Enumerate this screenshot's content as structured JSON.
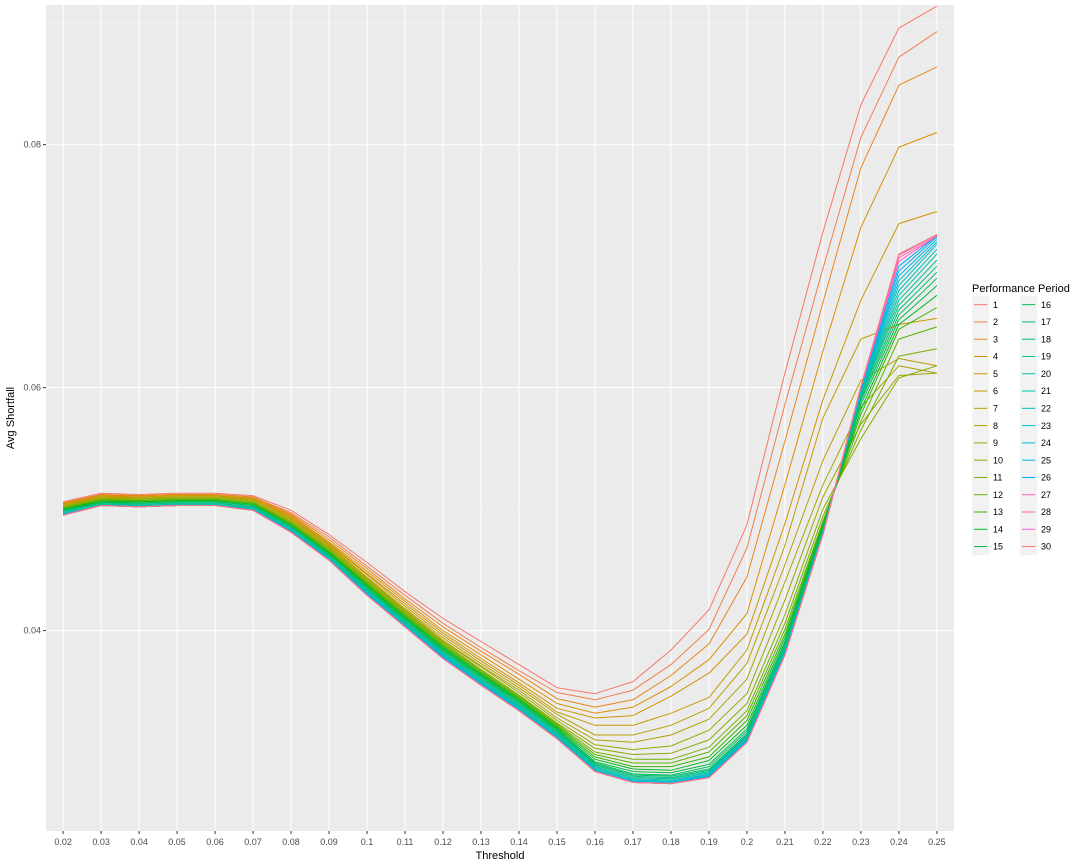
{
  "chart_data": {
    "type": "line",
    "title": "",
    "xlabel": "Threshold",
    "ylabel": "Avg Shortfall",
    "x_ticks": [
      "0.02",
      "0.03",
      "0.04",
      "0.05",
      "0.06",
      "0.07",
      "0.08",
      "0.09",
      "0.1",
      "0.11",
      "0.12",
      "0.13",
      "0.14",
      "0.15",
      "0.16",
      "0.17",
      "0.18",
      "0.19",
      "0.2",
      "0.21",
      "0.22",
      "0.23",
      "0.24",
      "0.25"
    ],
    "y_ticks": [
      "0.04",
      "0.06",
      "0.08"
    ],
    "x": [
      0.02,
      0.03,
      0.04,
      0.05,
      0.06,
      0.07,
      0.08,
      0.09,
      0.1,
      0.11,
      0.12,
      0.13,
      0.14,
      0.15,
      0.16,
      0.17,
      0.18,
      0.19,
      0.2,
      0.21,
      0.22,
      0.23,
      0.24,
      0.25
    ],
    "xlim": [
      0.0155,
      0.2545
    ],
    "ylim": [
      0.0235,
      0.0915
    ],
    "grid": true,
    "background": "#EBEBEB",
    "legend": {
      "title": "Performance Period",
      "position": "right",
      "columns": 2
    },
    "series": [
      {
        "name": "1",
        "color": "#F8766D",
        "values": [
          0.0506,
          0.0513,
          0.0512,
          0.0513,
          0.0513,
          0.0511,
          0.0499,
          0.0479,
          0.0456,
          0.0432,
          0.041,
          0.0391,
          0.0372,
          0.0353,
          0.0348,
          0.0358,
          0.0384,
          0.0417,
          0.0487,
          0.0612,
          0.0728,
          0.0833,
          0.0896,
          0.0914
        ]
      },
      {
        "name": "2",
        "color": "#F07F4F",
        "values": [
          0.0505,
          0.0512,
          0.0511,
          0.0512,
          0.0512,
          0.051,
          0.0497,
          0.0477,
          0.0453,
          0.0429,
          0.0406,
          0.0386,
          0.0367,
          0.0349,
          0.0343,
          0.0351,
          0.0372,
          0.0401,
          0.0468,
          0.0586,
          0.0698,
          0.0806,
          0.0872,
          0.0893
        ]
      },
      {
        "name": "3",
        "color": "#E7861B",
        "values": [
          0.0505,
          0.0512,
          0.0511,
          0.0512,
          0.0512,
          0.051,
          0.0496,
          0.0475,
          0.0451,
          0.0426,
          0.0403,
          0.0383,
          0.0364,
          0.0344,
          0.0337,
          0.0343,
          0.0363,
          0.0389,
          0.0444,
          0.0556,
          0.067,
          0.0781,
          0.0849,
          0.0864
        ]
      },
      {
        "name": "4",
        "color": "#DC8E00",
        "values": [
          0.0505,
          0.0511,
          0.0511,
          0.0512,
          0.0511,
          0.0509,
          0.0495,
          0.0473,
          0.0449,
          0.0424,
          0.04,
          0.038,
          0.036,
          0.034,
          0.0332,
          0.0337,
          0.0354,
          0.0376,
          0.0414,
          0.052,
          0.063,
          0.0732,
          0.0798,
          0.081
        ]
      },
      {
        "name": "5",
        "color": "#D09400",
        "values": [
          0.0504,
          0.0511,
          0.051,
          0.0511,
          0.0511,
          0.0509,
          0.0494,
          0.0472,
          0.0447,
          0.0422,
          0.0398,
          0.0377,
          0.0357,
          0.0336,
          0.0328,
          0.033,
          0.0346,
          0.0365,
          0.0397,
          0.0488,
          0.059,
          0.0672,
          0.0735,
          0.0745
        ]
      },
      {
        "name": "6",
        "color": "#C49A00",
        "values": [
          0.0504,
          0.051,
          0.051,
          0.0511,
          0.0511,
          0.0508,
          0.0493,
          0.0471,
          0.0446,
          0.042,
          0.0396,
          0.0375,
          0.0355,
          0.0333,
          0.0322,
          0.0322,
          0.0332,
          0.0345,
          0.0384,
          0.047,
          0.0575,
          0.064,
          0.0652,
          0.0657
        ]
      },
      {
        "name": "7",
        "color": "#B79F00",
        "values": [
          0.0503,
          0.051,
          0.0509,
          0.051,
          0.051,
          0.0508,
          0.0492,
          0.047,
          0.0444,
          0.0418,
          0.0394,
          0.0373,
          0.0353,
          0.0331,
          0.0314,
          0.0314,
          0.0322,
          0.0336,
          0.0373,
          0.0454,
          0.054,
          0.0606,
          0.0624,
          0.0618
        ]
      },
      {
        "name": "8",
        "color": "#A9A400",
        "values": [
          0.0503,
          0.0509,
          0.0509,
          0.051,
          0.051,
          0.0507,
          0.0491,
          0.0469,
          0.0443,
          0.0417,
          0.0392,
          0.0371,
          0.0351,
          0.0328,
          0.031,
          0.0308,
          0.0314,
          0.0327,
          0.036,
          0.044,
          0.052,
          0.0584,
          0.0618,
          0.0612
        ]
      },
      {
        "name": "9",
        "color": "#99A800",
        "values": [
          0.0502,
          0.0509,
          0.0508,
          0.0509,
          0.0509,
          0.0506,
          0.049,
          0.0468,
          0.0442,
          0.0416,
          0.0391,
          0.037,
          0.0349,
          0.0326,
          0.0306,
          0.0302,
          0.0305,
          0.0318,
          0.0348,
          0.0425,
          0.051,
          0.057,
          0.061,
          0.0612
        ]
      },
      {
        "name": "10",
        "color": "#88AC00",
        "values": [
          0.0502,
          0.0508,
          0.0508,
          0.0509,
          0.0509,
          0.0506,
          0.0489,
          0.0467,
          0.0441,
          0.0415,
          0.039,
          0.0368,
          0.0347,
          0.0324,
          0.0303,
          0.0298,
          0.0299,
          0.031,
          0.034,
          0.0413,
          0.05,
          0.0558,
          0.0608,
          0.0618
        ]
      },
      {
        "name": "11",
        "color": "#74B000",
        "values": [
          0.0501,
          0.0508,
          0.0507,
          0.0508,
          0.0508,
          0.0505,
          0.0489,
          0.0466,
          0.044,
          0.0414,
          0.0389,
          0.0367,
          0.0346,
          0.0323,
          0.03,
          0.0294,
          0.0294,
          0.0304,
          0.0334,
          0.0406,
          0.0494,
          0.0565,
          0.0626,
          0.0632
        ]
      },
      {
        "name": "12",
        "color": "#5BB300",
        "values": [
          0.0501,
          0.0507,
          0.0507,
          0.0508,
          0.0508,
          0.0505,
          0.0488,
          0.0465,
          0.0439,
          0.0413,
          0.0388,
          0.0366,
          0.0345,
          0.0322,
          0.0298,
          0.0291,
          0.0291,
          0.03,
          0.033,
          0.0401,
          0.049,
          0.0572,
          0.064,
          0.065
        ]
      },
      {
        "name": "13",
        "color": "#30B600",
        "values": [
          0.05,
          0.0507,
          0.0506,
          0.0507,
          0.0507,
          0.0504,
          0.0487,
          0.0465,
          0.0438,
          0.0412,
          0.0387,
          0.0365,
          0.0344,
          0.0321,
          0.0296,
          0.0288,
          0.0288,
          0.0296,
          0.0326,
          0.0397,
          0.0488,
          0.0578,
          0.0648,
          0.0666
        ]
      },
      {
        "name": "14",
        "color": "#00B81F",
        "values": [
          0.05,
          0.0506,
          0.0506,
          0.0507,
          0.0507,
          0.0504,
          0.0487,
          0.0464,
          0.0437,
          0.0411,
          0.0386,
          0.0364,
          0.0343,
          0.032,
          0.0294,
          0.0286,
          0.0285,
          0.0293,
          0.0322,
          0.0394,
          0.0486,
          0.0582,
          0.0652,
          0.0676
        ]
      },
      {
        "name": "15",
        "color": "#00BA42",
        "values": [
          0.0499,
          0.0506,
          0.0505,
          0.0506,
          0.0506,
          0.0503,
          0.0486,
          0.0463,
          0.0436,
          0.041,
          0.0385,
          0.0363,
          0.0342,
          0.0319,
          0.0292,
          0.0284,
          0.0283,
          0.029,
          0.0319,
          0.0391,
          0.0485,
          0.0586,
          0.0656,
          0.0684
        ]
      },
      {
        "name": "16",
        "color": "#00BC5B",
        "values": [
          0.0499,
          0.0505,
          0.0505,
          0.0506,
          0.0506,
          0.0503,
          0.0486,
          0.0462,
          0.0435,
          0.0409,
          0.0384,
          0.0362,
          0.0341,
          0.0318,
          0.0291,
          0.0282,
          0.0281,
          0.0288,
          0.0317,
          0.0389,
          0.0484,
          0.0589,
          0.066,
          0.069
        ]
      },
      {
        "name": "17",
        "color": "#00BE70",
        "values": [
          0.0498,
          0.0505,
          0.0504,
          0.0505,
          0.0505,
          0.0502,
          0.0485,
          0.0462,
          0.0434,
          0.0408,
          0.0383,
          0.0361,
          0.034,
          0.0317,
          0.029,
          0.0281,
          0.028,
          0.0286,
          0.0315,
          0.0387,
          0.0483,
          0.0591,
          0.0664,
          0.0695
        ]
      },
      {
        "name": "18",
        "color": "#00BF83",
        "values": [
          0.0498,
          0.0504,
          0.0504,
          0.0505,
          0.0505,
          0.0502,
          0.0484,
          0.0461,
          0.0434,
          0.0407,
          0.0382,
          0.036,
          0.0339,
          0.0316,
          0.0289,
          0.028,
          0.0279,
          0.0285,
          0.0314,
          0.0386,
          0.0482,
          0.0593,
          0.0668,
          0.07
        ]
      },
      {
        "name": "19",
        "color": "#00C094",
        "values": [
          0.0497,
          0.0504,
          0.0503,
          0.0504,
          0.0504,
          0.0501,
          0.0484,
          0.0461,
          0.0433,
          0.0407,
          0.0381,
          0.0359,
          0.0338,
          0.0315,
          0.0288,
          0.0279,
          0.0278,
          0.0284,
          0.0313,
          0.0385,
          0.0482,
          0.0594,
          0.0672,
          0.0705
        ]
      },
      {
        "name": "20",
        "color": "#00C0A5",
        "values": [
          0.0497,
          0.0504,
          0.0503,
          0.0504,
          0.0504,
          0.0501,
          0.0483,
          0.046,
          0.0432,
          0.0406,
          0.0381,
          0.0358,
          0.0337,
          0.0314,
          0.0287,
          0.0278,
          0.0277,
          0.0283,
          0.0312,
          0.0384,
          0.0481,
          0.0595,
          0.0676,
          0.071
        ]
      },
      {
        "name": "21",
        "color": "#00C0B5",
        "values": [
          0.0496,
          0.0503,
          0.0503,
          0.0504,
          0.0504,
          0.05,
          0.0483,
          0.046,
          0.0432,
          0.0405,
          0.038,
          0.0358,
          0.0337,
          0.0313,
          0.0286,
          0.0277,
          0.0276,
          0.0282,
          0.0311,
          0.0383,
          0.0481,
          0.0596,
          0.068,
          0.0714
        ]
      },
      {
        "name": "22",
        "color": "#00BEC4",
        "values": [
          0.0496,
          0.0503,
          0.0502,
          0.0503,
          0.0503,
          0.05,
          0.0482,
          0.0459,
          0.0431,
          0.0405,
          0.038,
          0.0357,
          0.0336,
          0.0313,
          0.0286,
          0.0277,
          0.0276,
          0.0281,
          0.031,
          0.0382,
          0.048,
          0.0597,
          0.0684,
          0.0718
        ]
      },
      {
        "name": "23",
        "color": "#00BBD2",
        "values": [
          0.0496,
          0.0503,
          0.0502,
          0.0503,
          0.0503,
          0.05,
          0.0482,
          0.0459,
          0.0431,
          0.0404,
          0.0379,
          0.0357,
          0.0336,
          0.0312,
          0.0285,
          0.0276,
          0.0275,
          0.0281,
          0.031,
          0.0382,
          0.048,
          0.0598,
          0.0688,
          0.072
        ]
      },
      {
        "name": "24",
        "color": "#00B7DF",
        "values": [
          0.0495,
          0.0503,
          0.0502,
          0.0503,
          0.0503,
          0.0499,
          0.0482,
          0.0459,
          0.043,
          0.0404,
          0.0379,
          0.0356,
          0.0335,
          0.0312,
          0.0285,
          0.0276,
          0.0275,
          0.028,
          0.0309,
          0.0381,
          0.048,
          0.0598,
          0.0692,
          0.0722
        ]
      },
      {
        "name": "25",
        "color": "#00B1EB",
        "values": [
          0.0495,
          0.0503,
          0.0502,
          0.0503,
          0.0503,
          0.0499,
          0.0482,
          0.0458,
          0.043,
          0.0403,
          0.0378,
          0.0356,
          0.0335,
          0.0311,
          0.0284,
          0.0275,
          0.0274,
          0.028,
          0.0309,
          0.0381,
          0.0479,
          0.0599,
          0.0696,
          0.0724
        ]
      },
      {
        "name": "26",
        "color": "#00AAF6",
        "values": [
          0.0495,
          0.0503,
          0.0502,
          0.0503,
          0.0503,
          0.0499,
          0.0481,
          0.0458,
          0.043,
          0.0403,
          0.0378,
          0.0355,
          0.0334,
          0.0311,
          0.0284,
          0.0275,
          0.0274,
          0.0279,
          0.0308,
          0.038,
          0.0479,
          0.06,
          0.07,
          0.0725
        ]
      },
      {
        "name": "27",
        "color": "#FF61C3",
        "values": [
          0.0495,
          0.0503,
          0.0502,
          0.0503,
          0.0503,
          0.0499,
          0.0481,
          0.0458,
          0.0429,
          0.0403,
          0.0377,
          0.0355,
          0.0334,
          0.0311,
          0.0284,
          0.0275,
          0.0274,
          0.0279,
          0.0308,
          0.038,
          0.0479,
          0.06,
          0.0704,
          0.0725
        ]
      },
      {
        "name": "28",
        "color": "#FF66A8",
        "values": [
          0.0495,
          0.0503,
          0.0502,
          0.0503,
          0.0503,
          0.0499,
          0.0481,
          0.0458,
          0.0429,
          0.0403,
          0.0377,
          0.0355,
          0.0334,
          0.0311,
          0.0284,
          0.0275,
          0.0274,
          0.0279,
          0.0308,
          0.038,
          0.0479,
          0.0601,
          0.0707,
          0.0725
        ]
      },
      {
        "name": "29",
        "color": "#FB61D7",
        "values": [
          0.0495,
          0.0503,
          0.0502,
          0.0503,
          0.0503,
          0.0499,
          0.0481,
          0.0458,
          0.0429,
          0.0403,
          0.0377,
          0.0355,
          0.0334,
          0.0311,
          0.0284,
          0.0275,
          0.0274,
          0.0279,
          0.0308,
          0.038,
          0.0479,
          0.0601,
          0.0709,
          0.0726
        ]
      },
      {
        "name": "30",
        "color": "#F8766D",
        "values": [
          0.0495,
          0.0503,
          0.0502,
          0.0503,
          0.0503,
          0.0499,
          0.0481,
          0.0458,
          0.0429,
          0.0403,
          0.0377,
          0.0355,
          0.0334,
          0.0311,
          0.0284,
          0.0275,
          0.0274,
          0.0279,
          0.0308,
          0.038,
          0.0479,
          0.0601,
          0.071,
          0.0726
        ]
      }
    ]
  }
}
